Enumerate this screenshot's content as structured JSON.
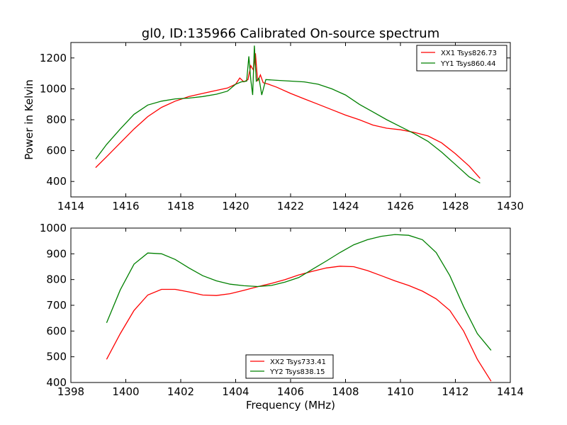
{
  "chart_data": [
    {
      "type": "line",
      "title": "gl0, ID:135966 Calibrated On-source spectrum",
      "xlabel": "",
      "ylabel": "Power in Kelvin",
      "xlim": [
        1414,
        1430
      ],
      "ylim": [
        300,
        1300
      ],
      "xticks": [
        1414,
        1416,
        1418,
        1420,
        1422,
        1424,
        1426,
        1428,
        1430
      ],
      "yticks": [
        400,
        600,
        800,
        1000,
        1200
      ],
      "legend": "top-right",
      "series": [
        {
          "name": "XX1 Tsys826.73",
          "color": "#ff0000",
          "x": [
            1414.9,
            1415.3,
            1415.8,
            1416.3,
            1416.8,
            1417.3,
            1417.8,
            1418.3,
            1418.8,
            1419.3,
            1419.7,
            1420.0,
            1420.15,
            1420.3,
            1420.45,
            1420.55,
            1420.65,
            1420.72,
            1420.8,
            1420.9,
            1421.0,
            1421.2,
            1421.5,
            1422.0,
            1422.5,
            1423.0,
            1423.5,
            1424.0,
            1424.5,
            1425.0,
            1425.5,
            1426.0,
            1426.5,
            1427.0,
            1427.5,
            1428.0,
            1428.5,
            1428.9
          ],
          "y": [
            490,
            560,
            650,
            740,
            820,
            880,
            920,
            950,
            970,
            990,
            1005,
            1030,
            1070,
            1045,
            1060,
            1150,
            1120,
            1230,
            1050,
            1090,
            1040,
            1030,
            1010,
            970,
            935,
            900,
            865,
            830,
            800,
            765,
            745,
            735,
            718,
            695,
            650,
            580,
            500,
            420
          ]
        },
        {
          "name": "YY1 Tsys860.44",
          "color": "#008000",
          "x": [
            1414.9,
            1415.3,
            1415.8,
            1416.3,
            1416.8,
            1417.3,
            1417.8,
            1418.3,
            1418.8,
            1419.3,
            1419.7,
            1420.0,
            1420.2,
            1420.4,
            1420.48,
            1420.55,
            1420.62,
            1420.68,
            1420.75,
            1420.85,
            1420.95,
            1421.1,
            1421.5,
            1422.0,
            1422.5,
            1423.0,
            1423.5,
            1424.0,
            1424.5,
            1425.0,
            1425.5,
            1426.0,
            1426.5,
            1427.0,
            1427.5,
            1428.0,
            1428.5,
            1428.9
          ],
          "y": [
            545,
            640,
            740,
            835,
            895,
            920,
            935,
            940,
            950,
            965,
            985,
            1030,
            1045,
            1050,
            1210,
            1060,
            960,
            1280,
            1050,
            1070,
            960,
            1060,
            1055,
            1050,
            1045,
            1030,
            1000,
            960,
            900,
            850,
            800,
            755,
            710,
            660,
            590,
            510,
            430,
            390
          ]
        }
      ]
    },
    {
      "type": "line",
      "title": "",
      "xlabel": "Frequency (MHz)",
      "ylabel": "",
      "xlim": [
        1398,
        1414
      ],
      "ylim": [
        400,
        1000
      ],
      "xticks": [
        1398,
        1400,
        1402,
        1404,
        1406,
        1408,
        1410,
        1412,
        1414
      ],
      "yticks": [
        400,
        500,
        600,
        700,
        800,
        900,
        1000
      ],
      "legend": "bottom-center",
      "series": [
        {
          "name": "XX2 Tsys733.41",
          "color": "#ff0000",
          "x": [
            1399.3,
            1399.8,
            1400.3,
            1400.8,
            1401.3,
            1401.8,
            1402.3,
            1402.8,
            1403.3,
            1403.8,
            1404.3,
            1404.8,
            1405.3,
            1405.8,
            1406.3,
            1406.8,
            1407.3,
            1407.8,
            1408.3,
            1408.8,
            1409.3,
            1409.8,
            1410.3,
            1410.8,
            1411.3,
            1411.8,
            1412.3,
            1412.8,
            1413.3
          ],
          "y": [
            490,
            590,
            680,
            740,
            762,
            762,
            752,
            740,
            738,
            745,
            758,
            772,
            785,
            800,
            818,
            832,
            845,
            852,
            850,
            835,
            815,
            795,
            777,
            755,
            725,
            680,
            600,
            490,
            405
          ]
        },
        {
          "name": "YY2 Tsys838.15",
          "color": "#008000",
          "x": [
            1399.3,
            1399.8,
            1400.3,
            1400.8,
            1401.3,
            1401.8,
            1402.3,
            1402.8,
            1403.3,
            1403.8,
            1404.3,
            1404.8,
            1405.3,
            1405.8,
            1406.3,
            1406.8,
            1407.3,
            1407.8,
            1408.3,
            1408.8,
            1409.3,
            1409.8,
            1410.3,
            1410.8,
            1411.3,
            1411.8,
            1412.3,
            1412.8,
            1413.3
          ],
          "y": [
            632,
            760,
            860,
            903,
            900,
            878,
            845,
            815,
            795,
            782,
            776,
            773,
            777,
            790,
            808,
            840,
            872,
            905,
            935,
            955,
            968,
            975,
            972,
            955,
            905,
            815,
            695,
            590,
            525
          ]
        }
      ]
    }
  ]
}
